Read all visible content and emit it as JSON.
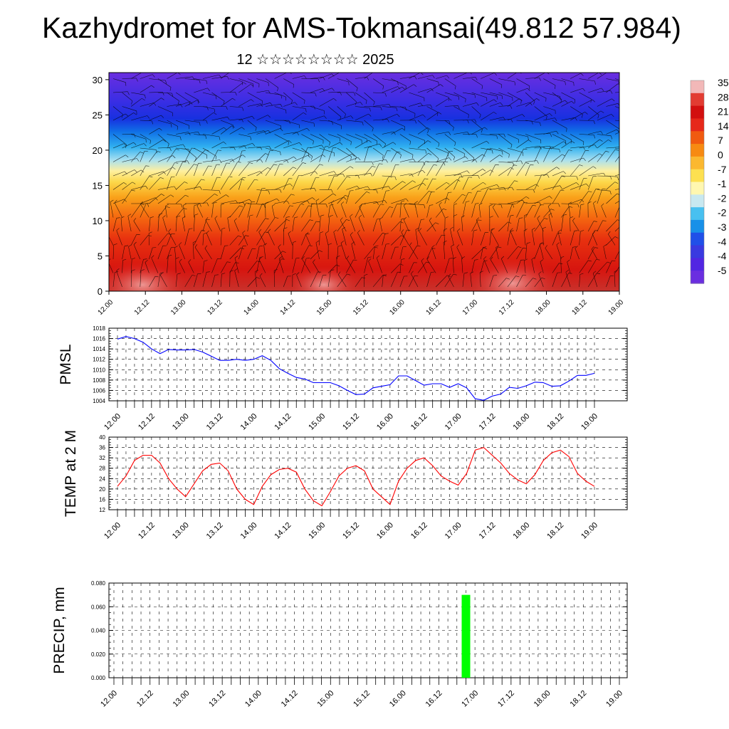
{
  "title": "Kazhydromet for AMS-Tokmansai(49.812 57.984)",
  "subtitle": "12 ☆☆☆☆☆☆☆☆ 2025",
  "colors": {
    "pmsl_line": "#0000ff",
    "temp_line": "#ff0000",
    "precip_bar": "#00ff00",
    "grid": "#000000"
  },
  "chart_data": [
    {
      "type": "heatmap",
      "title": "",
      "y_ticks": [
        "0",
        "5",
        "10",
        "15",
        "20",
        "25",
        "30"
      ],
      "ylim": [
        0,
        31
      ],
      "x_ticks": [
        "12.00",
        "12.12",
        "13.00",
        "13.12",
        "14.00",
        "14.12",
        "15.00",
        "15.12",
        "16.00",
        "16.12",
        "17.00",
        "17.12",
        "18.00",
        "18.12",
        "19.00"
      ],
      "colorbar_labels": [
        "35",
        "28",
        "21",
        "14",
        "7",
        "0",
        "-7",
        "-1",
        "-2",
        "-2",
        "-3",
        "-4",
        "-4",
        "-5"
      ],
      "colorbar_colors": [
        "#f2b8b8",
        "#e23c32",
        "#d20f0f",
        "#e6281a",
        "#f05a10",
        "#f78a12",
        "#fbb830",
        "#fde050",
        "#fff7b0",
        "#c8e8f0",
        "#48c0f0",
        "#1890e8",
        "#2050e8",
        "#3a3ae0",
        "#5226e2",
        "#6a2ee0"
      ],
      "overlay": "wind barbs"
    },
    {
      "type": "line",
      "ylabel": "PMSL",
      "ylim": [
        1004,
        1018
      ],
      "y_ticks": [
        "1004",
        "1006",
        "1008",
        "1010",
        "1012",
        "1014",
        "1016",
        "1018"
      ],
      "x_ticks": [
        "12.00",
        "12.12",
        "13.00",
        "13.12",
        "14.00",
        "14.12",
        "15.00",
        "15.12",
        "16.00",
        "16.12",
        "17.00",
        "17.12",
        "18.00",
        "18.12",
        "19.00"
      ],
      "series": [
        {
          "values": [
            1015.9,
            1016.4,
            1016.0,
            1015.3,
            1014.0,
            1013.1,
            1013.9,
            1013.8,
            1013.8,
            1013.9,
            1013.4,
            1012.6,
            1011.8,
            1011.8,
            1012.0,
            1011.8,
            1012.0,
            1012.7,
            1011.8,
            1010.2,
            1009.3,
            1008.5,
            1008.2,
            1007.5,
            1007.5,
            1007.5,
            1006.9,
            1006.0,
            1005.2,
            1005.3,
            1006.5,
            1006.8,
            1007.1,
            1008.8,
            1008.8,
            1007.9,
            1007.0,
            1007.3,
            1007.3,
            1006.6,
            1007.3,
            1006.5,
            1004.4,
            1004.1,
            1004.9,
            1005.3,
            1006.6,
            1006.4,
            1006.9,
            1007.6,
            1007.5,
            1006.8,
            1006.9,
            1007.8,
            1008.9,
            1008.9,
            1009.3
          ]
        }
      ]
    },
    {
      "type": "line",
      "ylabel": "TEMP at 2 M",
      "ylim": [
        12,
        40
      ],
      "y_ticks": [
        "12",
        "16",
        "20",
        "24",
        "28",
        "32",
        "36",
        "40"
      ],
      "x_ticks": [
        "12.00",
        "12.12",
        "13.00",
        "13.12",
        "14.00",
        "14.12",
        "15.00",
        "15.12",
        "16.00",
        "16.12",
        "17.00",
        "17.12",
        "18.00",
        "18.12",
        "19.00"
      ],
      "series": [
        {
          "values": [
            21,
            25,
            31,
            33,
            33,
            30,
            24,
            20,
            17,
            22,
            27,
            29.5,
            30,
            27,
            20,
            16,
            14,
            21,
            25.5,
            27.5,
            28,
            26.5,
            20,
            15.5,
            13.5,
            19,
            25,
            28,
            29,
            27,
            20,
            17,
            14,
            23,
            28,
            31,
            32,
            29,
            25,
            23,
            21.5,
            26,
            35,
            36,
            33,
            30,
            26,
            23.5,
            22,
            25.5,
            31,
            34,
            35,
            32.5,
            26,
            23,
            21
          ]
        }
      ]
    },
    {
      "type": "bar",
      "ylabel": "PRECIP, mm",
      "ylim": [
        0,
        0.08
      ],
      "y_ticks": [
        "0.000",
        "0.020",
        "0.040",
        "0.060",
        "0.080"
      ],
      "x_ticks": [
        "12.00",
        "12.12",
        "13.00",
        "13.12",
        "14.00",
        "14.12",
        "15.00",
        "15.12",
        "16.00",
        "16.12",
        "17.00",
        "17.12",
        "18.00",
        "18.12",
        "19.00"
      ],
      "bars": [
        {
          "x": "16.21",
          "value": 0.07
        }
      ]
    }
  ]
}
